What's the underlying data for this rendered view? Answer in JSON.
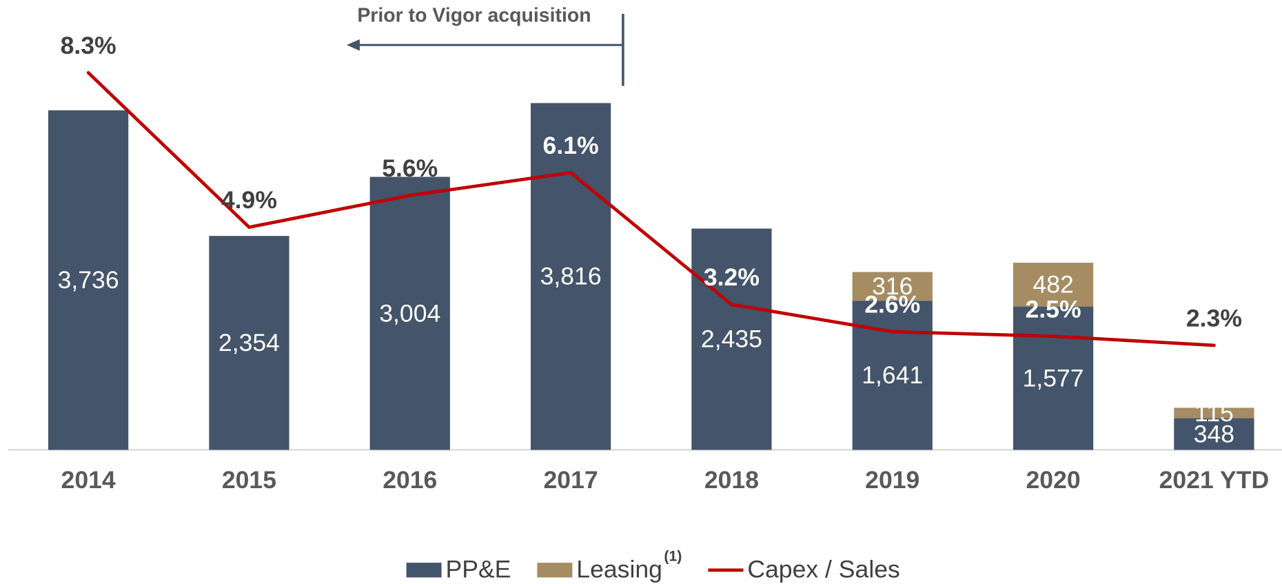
{
  "chart_data": {
    "type": "bar",
    "annotation": "Prior to Vigor acquisition",
    "categories": [
      "2014",
      "2015",
      "2016",
      "2017",
      "2018",
      "2019",
      "2020",
      "2021 YTD"
    ],
    "series": [
      {
        "name": "PP&E",
        "color": "#44546a",
        "values": [
          3736,
          2354,
          3004,
          3816,
          2435,
          1641,
          1577,
          348
        ],
        "value_labels": [
          "3,736",
          "2,354",
          "3,004",
          "3,816",
          "2,435",
          "1,641",
          "1,577",
          "348"
        ]
      },
      {
        "name": "Leasing",
        "footnote": "(1)",
        "color": "#a58c63",
        "values": [
          null,
          null,
          null,
          null,
          null,
          316,
          482,
          115
        ],
        "value_labels": [
          null,
          null,
          null,
          null,
          null,
          "316",
          "482",
          "115"
        ]
      },
      {
        "name": "Capex / Sales",
        "type": "line",
        "axis": "y2",
        "color": "#c00000",
        "values": [
          8.3,
          4.9,
          5.6,
          6.1,
          3.2,
          2.6,
          2.5,
          2.3
        ],
        "value_labels": [
          "8.3%",
          "4.9%",
          "5.6%",
          "6.1%",
          "3.2%",
          "2.6%",
          "2.5%",
          "2.3%"
        ]
      }
    ],
    "stacked": true,
    "ylim": [
      0,
      4500
    ],
    "y2lim": [
      0,
      9
    ]
  }
}
